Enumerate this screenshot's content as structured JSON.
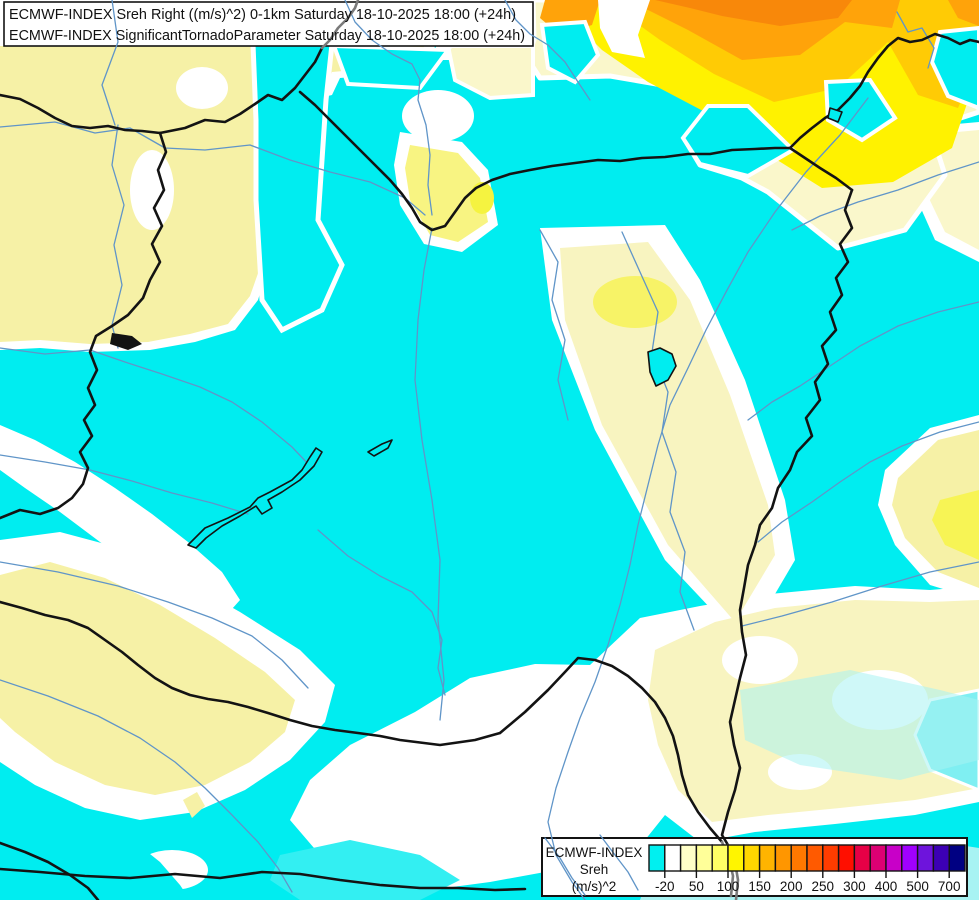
{
  "header": {
    "line1": "ECMWF-INDEX Sreh Right ((m/s)^2) 0-1km Saturday 18-10-2025 18:00 (+24h)",
    "line2": "ECMWF-INDEX SignificantTornadoParameter Saturday 18-10-2025 18:00 (+24h)"
  },
  "legend": {
    "title": "ECMWF-INDEX",
    "parameter": "Sreh",
    "units": "(m/s)^2",
    "tick_labels": [
      "-20",
      "50",
      "100",
      "150",
      "200",
      "250",
      "300",
      "400",
      "500",
      "700"
    ],
    "cell_colors": [
      "#00F0F0",
      "#FFFFFF",
      "#FFFFC8",
      "#FFFF99",
      "#FFFF66",
      "#FFF500",
      "#FFD700",
      "#FFB400",
      "#FF9600",
      "#FF7800",
      "#FF5A00",
      "#FF3C00",
      "#FF0F00",
      "#E60046",
      "#DC0073",
      "#C800C8",
      "#A000FF",
      "#6E14DC",
      "#3C00B4",
      "#000082"
    ]
  },
  "map_palette": {
    "below_threshold_cyan": "#00EDF0",
    "light_cyan": "#A8F3F3",
    "white_band": "#FFFFFF",
    "pale_yellow": "#F6F1A6",
    "cream": "#FAF7CB",
    "yellow": "#FFF200",
    "gold": "#FFCB05",
    "orange": "#FFA30A",
    "deep_orange": "#F8880A",
    "river_blue": "#6095C8",
    "border_black": "#131313"
  }
}
